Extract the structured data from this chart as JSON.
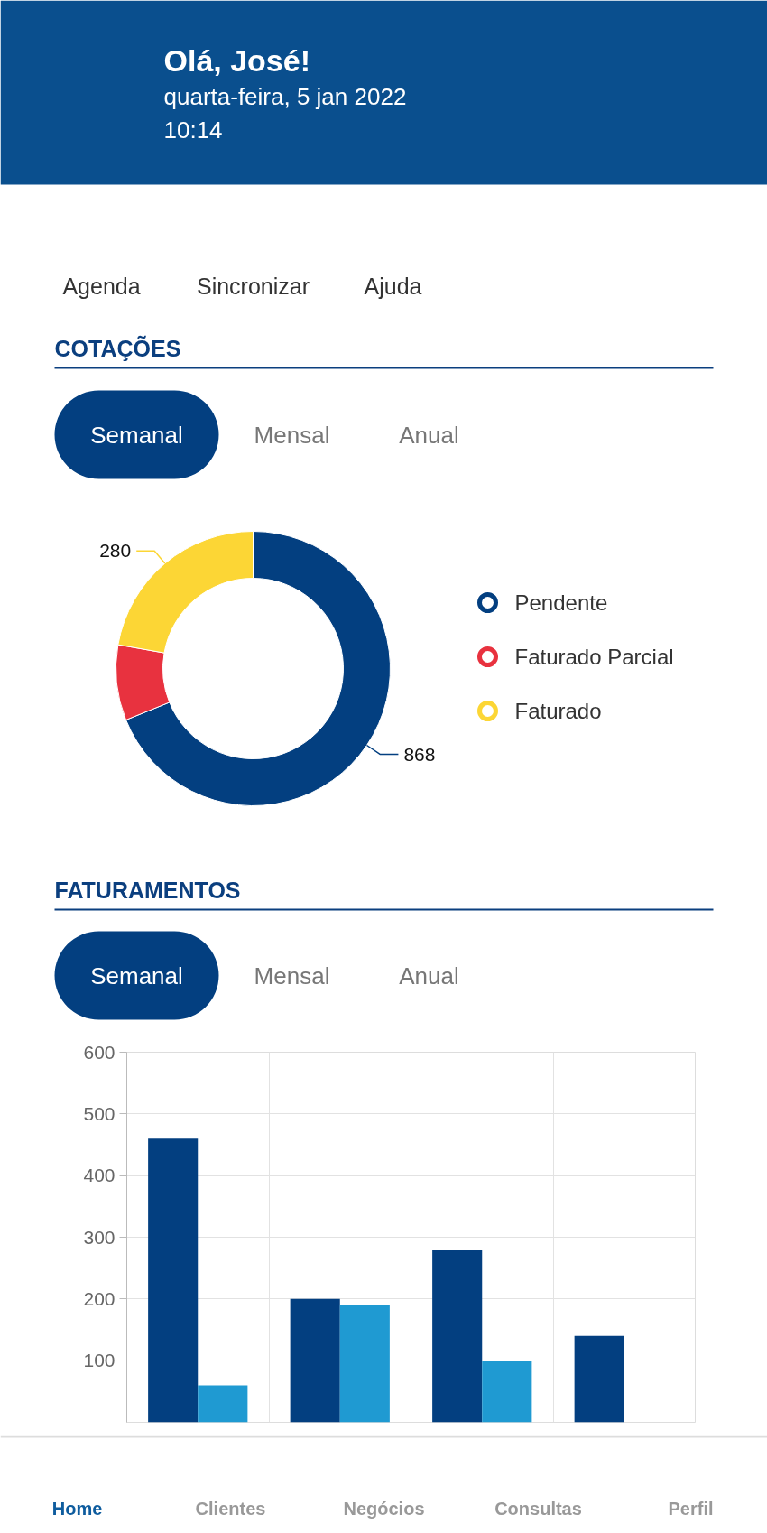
{
  "chart_data": [
    {
      "type": "donut",
      "title": "COTAÇÕES",
      "categories": [
        "Pendente",
        "Faturado Parcial",
        "Faturado"
      ],
      "values": [
        868,
        112,
        280
      ],
      "colors": [
        "#033f80",
        "#e8323f",
        "#fcd635"
      ],
      "value_labels": [
        "868",
        null,
        "280"
      ],
      "legend": "right",
      "annotations": [
        "Olá, José!",
        "quarta-feira, 5 jan 2022",
        "10:14",
        "Agenda",
        "Sincronizar",
        "Ajuda",
        "Semanal",
        "Mensal",
        "Anual"
      ]
    },
    {
      "type": "bar",
      "title": "FATURAMENTOS",
      "categories": [
        null,
        null,
        null,
        null
      ],
      "series": [
        {
          "color": "#033f80",
          "values": [
            460,
            200,
            280,
            140
          ]
        },
        {
          "color": "#1f9ad2",
          "values": [
            60,
            190,
            100,
            null
          ]
        }
      ],
      "ylim": [
        0,
        600
      ],
      "yticks": [
        100,
        200,
        300,
        400,
        500,
        600
      ],
      "grid": true,
      "annotations": [
        "Semanal",
        "Mensal",
        "Anual",
        "Home",
        "Clientes",
        "Negócios",
        "Consultas",
        "Perfil"
      ]
    }
  ]
}
